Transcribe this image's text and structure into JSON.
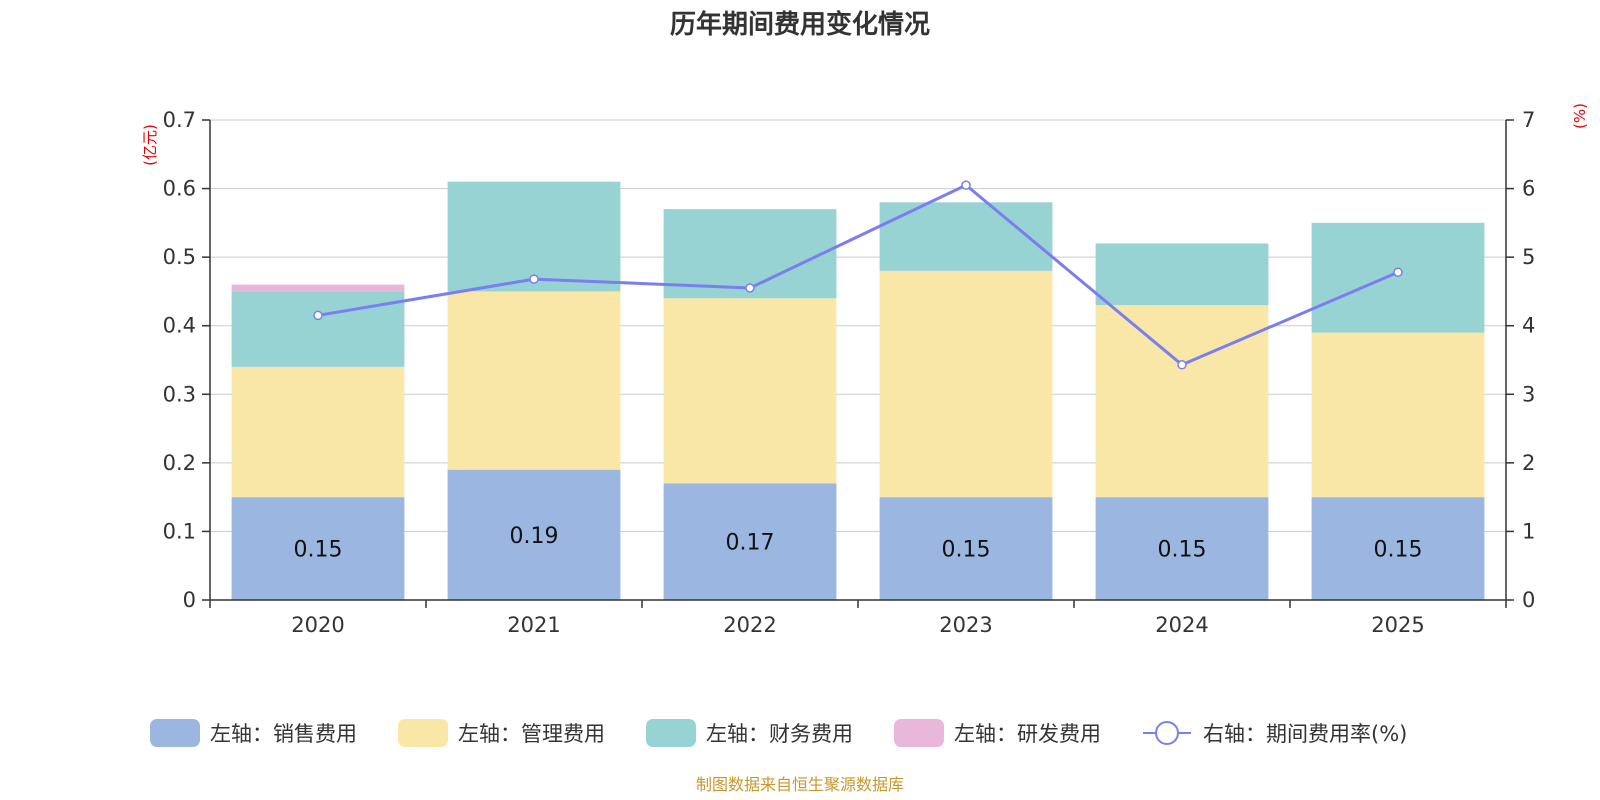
{
  "chart_data": {
    "type": "bar",
    "stacked": true,
    "title": "历年期间费用变化情况",
    "categories": [
      "2020",
      "2021",
      "2022",
      "2023",
      "2024",
      "2025"
    ],
    "left_axis": {
      "unit_label": "(亿元)",
      "range": [
        0,
        0.7
      ],
      "ticks": [
        "0",
        "0.1",
        "0.2",
        "0.3",
        "0.4",
        "0.5",
        "0.6",
        "0.7"
      ]
    },
    "right_axis": {
      "unit_label": "(%)",
      "range": [
        0,
        7
      ],
      "ticks": [
        "0",
        "1",
        "2",
        "3",
        "4",
        "5",
        "6",
        "7"
      ]
    },
    "series": [
      {
        "name": "左轴：销售费用",
        "axis": "left",
        "type": "bar",
        "color": "#9bb7e1",
        "values": [
          0.15,
          0.19,
          0.17,
          0.15,
          0.15,
          0.15
        ],
        "show_labels": true
      },
      {
        "name": "左轴：管理费用",
        "axis": "left",
        "type": "bar",
        "color": "#f8e7a7",
        "values": [
          0.19,
          0.26,
          0.27,
          0.33,
          0.28,
          0.24
        ]
      },
      {
        "name": "左轴：财务费用",
        "axis": "left",
        "type": "bar",
        "color": "#98d3d4",
        "values": [
          0.11,
          0.16,
          0.13,
          0.1,
          0.09,
          0.16
        ]
      },
      {
        "name": "左轴：研发费用",
        "axis": "left",
        "type": "bar",
        "color": "#e8b7d9",
        "values": [
          0.01,
          0,
          0,
          0,
          0,
          0
        ]
      },
      {
        "name": "右轴：期间费用率(%)",
        "axis": "right",
        "type": "line",
        "color": "#7b7ef0",
        "values": [
          4.15,
          4.68,
          4.55,
          6.05,
          3.43,
          4.78
        ]
      }
    ],
    "legend_position": "bottom",
    "grid": true
  },
  "source": "制图数据来自恒生聚源数据库"
}
